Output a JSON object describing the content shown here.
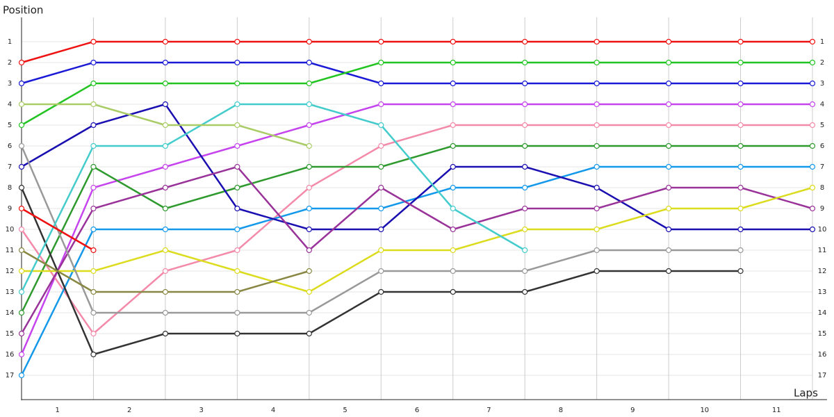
{
  "chart_data": {
    "type": "line",
    "y_label": "Position",
    "x_label": "Laps",
    "xlim": [
      0,
      11
    ],
    "xticks": [
      1,
      2,
      3,
      4,
      5,
      6,
      7,
      8,
      9,
      10,
      11
    ],
    "ylim": [
      0,
      18
    ],
    "yticks": [
      1,
      2,
      3,
      4,
      5,
      6,
      7,
      8,
      9,
      10,
      11,
      12,
      13,
      14,
      15,
      16,
      17
    ],
    "y_inverted": true,
    "grid": true,
    "series": [
      {
        "color": "#ee1111",
        "values": [
          2,
          1,
          1,
          1,
          1,
          1,
          1,
          1,
          1,
          1,
          1,
          1
        ]
      },
      {
        "color": "#1a1ad6",
        "values": [
          3,
          2,
          2,
          2,
          2,
          3,
          3,
          3,
          3,
          3,
          3,
          3
        ]
      },
      {
        "color": "#22c422",
        "values": [
          5,
          3,
          3,
          3,
          3,
          2,
          2,
          2,
          2,
          2,
          2,
          2
        ]
      },
      {
        "color": "#c644ee",
        "values": [
          16,
          8,
          7,
          6,
          5,
          4,
          4,
          4,
          4,
          4,
          4,
          4
        ]
      },
      {
        "color": "#f48aaa",
        "values": [
          10,
          15,
          12,
          11,
          8,
          6,
          5,
          5,
          5,
          5,
          5,
          5
        ]
      },
      {
        "color": "#2e9a2e",
        "values": [
          14,
          7,
          9,
          8,
          7,
          7,
          6,
          6,
          6,
          6,
          6,
          6
        ]
      },
      {
        "color": "#1499ea",
        "values": [
          17,
          10,
          10,
          10,
          9,
          9,
          8,
          8,
          7,
          7,
          7,
          7
        ]
      },
      {
        "color": "#1a0fb0",
        "values": [
          7,
          5,
          4,
          9,
          10,
          10,
          7,
          7,
          8,
          10,
          10,
          10
        ]
      },
      {
        "color": "#993399",
        "values": [
          15,
          9,
          8,
          7,
          11,
          8,
          10,
          9,
          9,
          8,
          8,
          9
        ]
      },
      {
        "color": "#dcdc1e",
        "values": [
          12,
          12,
          11,
          12,
          13,
          11,
          11,
          10,
          10,
          9,
          9,
          8
        ]
      },
      {
        "color": "#999999",
        "values": [
          6,
          14,
          14,
          14,
          14,
          12,
          12,
          12,
          11,
          11,
          11,
          null
        ]
      },
      {
        "color": "#333333",
        "values": [
          8,
          16,
          15,
          15,
          15,
          13,
          13,
          13,
          12,
          12,
          12,
          null
        ]
      },
      {
        "color": "#44cccc",
        "values": [
          13,
          6,
          6,
          4,
          4,
          5,
          9,
          11,
          null,
          null,
          null,
          null
        ]
      },
      {
        "color": "#aacc66",
        "values": [
          4,
          4,
          5,
          5,
          6,
          null,
          null,
          null,
          null,
          null,
          null,
          null
        ]
      },
      {
        "color": "#888844",
        "values": [
          11,
          13,
          13,
          13,
          12,
          null,
          null,
          null,
          null,
          null,
          null,
          null
        ]
      },
      {
        "color": "#ee1111",
        "values": [
          9,
          11,
          null,
          null,
          null,
          null,
          null,
          null,
          null,
          null,
          null,
          null
        ]
      }
    ]
  }
}
